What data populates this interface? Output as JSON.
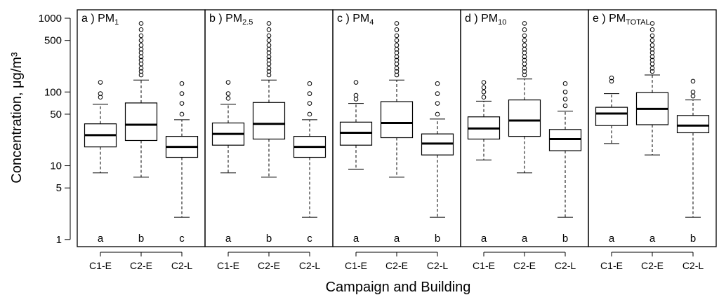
{
  "chart_data": {
    "type": "boxplot",
    "ylabel": "Concentration, μg/m³",
    "xlabel": "Campaign and Building",
    "y_scale": "log",
    "ylim": [
      0.8,
      1300
    ],
    "yticks": [
      1,
      5,
      10,
      50,
      100,
      500,
      1000
    ],
    "categories": [
      "C1-E",
      "C2-E",
      "C2-L"
    ],
    "panels": [
      {
        "letter": "a )",
        "pm": "PM",
        "sub": "1",
        "significance": [
          "a",
          "b",
          "c"
        ],
        "boxes": [
          {
            "whisker_low": 8,
            "q1": 18,
            "median": 26,
            "q3": 37,
            "whisker_high": 68,
            "outliers": [
              85,
              95,
              135
            ]
          },
          {
            "whisker_low": 7,
            "q1": 22,
            "median": 36,
            "q3": 71,
            "whisker_high": 145,
            "outliers": [
              170,
              190,
              210,
              240,
              270,
              300,
              340,
              380,
              430,
              500,
              580,
              700,
              850
            ]
          },
          {
            "whisker_low": 2,
            "q1": 13,
            "median": 18,
            "q3": 25,
            "whisker_high": 42,
            "outliers": [
              50,
              70,
              95,
              130
            ]
          }
        ]
      },
      {
        "letter": "b )",
        "pm": "PM",
        "sub": "2.5",
        "significance": [
          "a",
          "b",
          "c"
        ],
        "boxes": [
          {
            "whisker_low": 8,
            "q1": 19,
            "median": 27,
            "q3": 38,
            "whisker_high": 68,
            "outliers": [
              82,
              95,
              135
            ]
          },
          {
            "whisker_low": 7,
            "q1": 23,
            "median": 37,
            "q3": 72,
            "whisker_high": 145,
            "outliers": [
              170,
              190,
              210,
              240,
              270,
              300,
              340,
              380,
              430,
              500,
              580,
              700,
              850
            ]
          },
          {
            "whisker_low": 2,
            "q1": 13,
            "median": 18,
            "q3": 25,
            "whisker_high": 42,
            "outliers": [
              50,
              70,
              95,
              130
            ]
          }
        ]
      },
      {
        "letter": "c )",
        "pm": "PM",
        "sub": "4",
        "significance": [
          "a",
          "a",
          "b"
        ],
        "boxes": [
          {
            "whisker_low": 9,
            "q1": 19,
            "median": 28,
            "q3": 39,
            "whisker_high": 70,
            "outliers": [
              80,
              90,
              135
            ]
          },
          {
            "whisker_low": 7,
            "q1": 24,
            "median": 38,
            "q3": 74,
            "whisker_high": 145,
            "outliers": [
              170,
              190,
              210,
              240,
              270,
              300,
              340,
              380,
              430,
              500,
              580,
              700,
              850
            ]
          },
          {
            "whisker_low": 2,
            "q1": 14,
            "median": 20,
            "q3": 27,
            "whisker_high": 43,
            "outliers": [
              50,
              70,
              95,
              130
            ]
          }
        ]
      },
      {
        "letter": "d )",
        "pm": "PM",
        "sub": "10",
        "significance": [
          "a",
          "a",
          "b"
        ],
        "boxes": [
          {
            "whisker_low": 12,
            "q1": 23,
            "median": 32,
            "q3": 46,
            "whisker_high": 75,
            "outliers": [
              85,
              100,
              115,
              135
            ]
          },
          {
            "whisker_low": 8,
            "q1": 25,
            "median": 41,
            "q3": 78,
            "whisker_high": 150,
            "outliers": [
              170,
              190,
              210,
              240,
              270,
              300,
              340,
              380,
              430,
              500,
              580,
              700,
              850
            ]
          },
          {
            "whisker_low": 2,
            "q1": 16,
            "median": 23,
            "q3": 31,
            "whisker_high": 55,
            "outliers": [
              65,
              80,
              100,
              130
            ]
          }
        ]
      },
      {
        "letter": "e )",
        "pm": "PM",
        "sub": "TOTAL",
        "significance": [
          "a",
          "a",
          "b"
        ],
        "boxes": [
          {
            "whisker_low": 20,
            "q1": 35,
            "median": 51,
            "q3": 62,
            "whisker_high": 95,
            "outliers": [
              140,
              155
            ]
          },
          {
            "whisker_low": 14,
            "q1": 36,
            "median": 59,
            "q3": 98,
            "whisker_high": 170,
            "outliers": [
              190,
              210,
              240,
              270,
              300,
              340,
              380,
              430,
              500,
              580,
              700,
              850
            ]
          },
          {
            "whisker_low": 2,
            "q1": 28,
            "median": 35,
            "q3": 48,
            "whisker_high": 78,
            "outliers": [
              88,
              100,
              140
            ]
          }
        ]
      }
    ]
  }
}
